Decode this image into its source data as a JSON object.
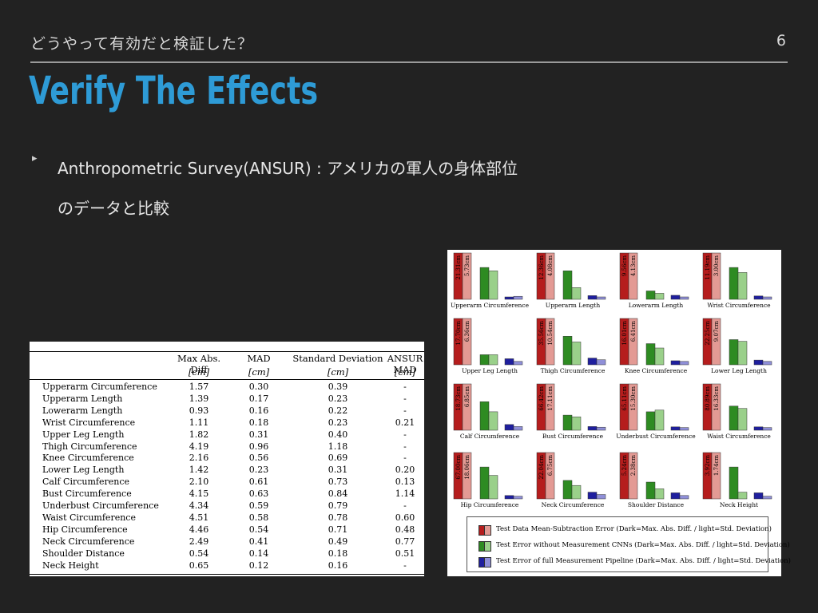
{
  "slide": {
    "subtitle": "どうやって有効だと検証した？",
    "page_number": "6",
    "title": "Verify The Effects",
    "bullet_marker": "▸",
    "bullet_line1": "Anthropometric Survey(ANSUR) : アメリカの軍人の身体部位",
    "bullet_line2": "のデータと比較"
  },
  "table": {
    "headers": [
      "Max Abs. Diff",
      "MAD",
      "Standard Deviation",
      "ANSUR MAD"
    ],
    "units": [
      "[cm]",
      "[cm]",
      "[cm]",
      "[cm]"
    ],
    "rows": [
      [
        "Upperarm Circumference",
        "1.57",
        "0.30",
        "0.39",
        "-"
      ],
      [
        "Upperarm Length",
        "1.39",
        "0.17",
        "0.23",
        "-"
      ],
      [
        "Lowerarm Length",
        "0.93",
        "0.16",
        "0.22",
        "-"
      ],
      [
        "Wrist Circumference",
        "1.11",
        "0.18",
        "0.23",
        "0.21"
      ],
      [
        "Upper Leg Length",
        "1.82",
        "0.31",
        "0.40",
        "-"
      ],
      [
        "Thigh Circumference",
        "4.19",
        "0.96",
        "1.18",
        "-"
      ],
      [
        "Knee Circumference",
        "2.16",
        "0.56",
        "0.69",
        "-"
      ],
      [
        "Lower Leg Length",
        "1.42",
        "0.23",
        "0.31",
        "0.20"
      ],
      [
        "Calf Circumference",
        "2.10",
        "0.61",
        "0.73",
        "0.13"
      ],
      [
        "Bust Circumference",
        "4.15",
        "0.63",
        "0.84",
        "1.14"
      ],
      [
        "Underbust Circumference",
        "4.34",
        "0.59",
        "0.79",
        "-"
      ],
      [
        "Waist Circumference",
        "4.51",
        "0.58",
        "0.78",
        "0.60"
      ],
      [
        "Hip Circumference",
        "4.46",
        "0.54",
        "0.71",
        "0.48"
      ],
      [
        "Neck Circumference",
        "2.49",
        "0.41",
        "0.49",
        "0.77"
      ],
      [
        "Shoulder Distance",
        "0.54",
        "0.14",
        "0.18",
        "0.51"
      ],
      [
        "Neck Height",
        "0.65",
        "0.12",
        "0.16",
        "-"
      ]
    ]
  },
  "charts": {
    "colors": {
      "red_dark": "#b51d1d",
      "red_light": "#e39a94",
      "green_dark": "#2e8b22",
      "green_light": "#9ad08a",
      "blue_dark": "#1f1f9e",
      "blue_light": "#8f8fd8"
    },
    "panels": [
      {
        "label": "Upperarm Circumference",
        "red_max": "21.31cm",
        "red_std": "5.73cm",
        "green": [
          0.95,
          0.85
        ],
        "blue": [
          0.07,
          0.09
        ]
      },
      {
        "label": "Upperarm Length",
        "red_max": "12.36cm",
        "red_std": "4.08cm",
        "green": [
          0.85,
          0.35
        ],
        "blue": [
          0.11,
          0.07
        ]
      },
      {
        "label": "Lowerarm Length",
        "red_max": "9.56cm",
        "red_std": "4.13cm",
        "green": [
          0.25,
          0.18
        ],
        "blue": [
          0.12,
          0.07
        ]
      },
      {
        "label": "Wrist Circumference",
        "red_max": "11.19cm",
        "red_std": "3.00cm",
        "green": [
          0.95,
          0.8
        ],
        "blue": [
          0.1,
          0.07
        ]
      },
      {
        "label": "Upper Leg Length",
        "red_max": "17.70cm",
        "red_std": "6.36cm",
        "green": [
          0.3,
          0.3
        ],
        "blue": [
          0.18,
          0.1
        ]
      },
      {
        "label": "Thigh Circumference",
        "red_max": "35.56cm",
        "red_std": "10.54cm",
        "green": [
          0.85,
          0.68
        ],
        "blue": [
          0.2,
          0.15
        ]
      },
      {
        "label": "Knee Circumference",
        "red_max": "16.01cm",
        "red_std": "6.41cm",
        "green": [
          0.63,
          0.5
        ],
        "blue": [
          0.12,
          0.1
        ]
      },
      {
        "label": "Lower Leg Length",
        "red_max": "22.25cm",
        "red_std": "9.07cm",
        "green": [
          0.75,
          0.7
        ],
        "blue": [
          0.14,
          0.1
        ]
      },
      {
        "label": "Calf Circumference",
        "red_max": "18.73cm",
        "red_std": "6.85cm",
        "green": [
          0.85,
          0.55
        ],
        "blue": [
          0.17,
          0.11
        ]
      },
      {
        "label": "Bust Circumference",
        "red_max": "66.42cm",
        "red_std": "17.11cm",
        "green": [
          0.45,
          0.4
        ],
        "blue": [
          0.11,
          0.09
        ]
      },
      {
        "label": "Underbust Circumference",
        "red_max": "65.11cm",
        "red_std": "15.30cm",
        "green": [
          0.55,
          0.6
        ],
        "blue": [
          0.1,
          0.08
        ]
      },
      {
        "label": "Waist Circumference",
        "red_max": "80.89cm",
        "red_std": "16.33cm",
        "green": [
          0.72,
          0.65
        ],
        "blue": [
          0.1,
          0.08
        ]
      },
      {
        "label": "Hip Circumference",
        "red_max": "67.00cm",
        "red_std": "18.06cm",
        "green": [
          0.95,
          0.7
        ],
        "blue": [
          0.1,
          0.08
        ]
      },
      {
        "label": "Neck Circumference",
        "red_max": "22.04cm",
        "red_std": "6.75cm",
        "green": [
          0.55,
          0.4
        ],
        "blue": [
          0.2,
          0.13
        ]
      },
      {
        "label": "Shoulder Distance",
        "red_max": "5.24cm",
        "red_std": "2.38cm",
        "green": [
          0.5,
          0.3
        ],
        "blue": [
          0.18,
          0.1
        ]
      },
      {
        "label": "Neck Height",
        "red_max": "3.92cm",
        "red_std": "1.74cm",
        "green": [
          0.95,
          0.2
        ],
        "blue": [
          0.18,
          0.08
        ]
      }
    ],
    "legend": [
      "Test Data Mean-Subtraction Error (Dark=Max. Abs. Diff. / light=Std. Deviation)",
      "Test Error without Measurement CNNs (Dark=Max. Abs. Diff. / light=Std. Deviation)",
      "Test Error of full Measurement Pipeline (Dark=Max. Abs. Diff. / light=Std. Deviation)"
    ]
  }
}
